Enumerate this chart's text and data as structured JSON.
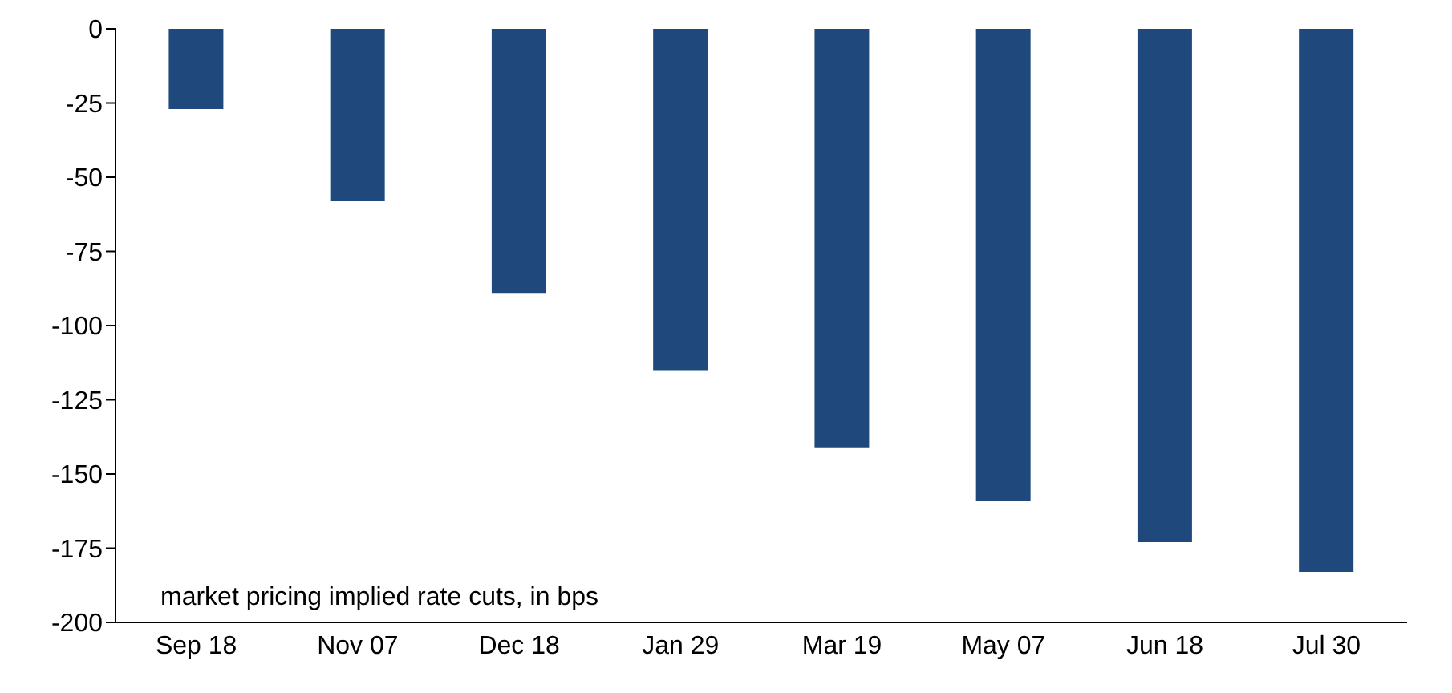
{
  "chart_data": {
    "type": "bar",
    "categories": [
      "Sep 18",
      "Nov 07",
      "Dec 18",
      "Jan 29",
      "Mar 19",
      "May 07",
      "Jun 18",
      "Jul 30"
    ],
    "values": [
      -27,
      -58,
      -89,
      -115,
      -141,
      -159,
      -173,
      -183
    ],
    "color": "#1f497d",
    "ylim": [
      -200,
      0
    ],
    "yticks": [
      -200,
      -175,
      -150,
      -125,
      -100,
      -75,
      -50,
      -25,
      0
    ],
    "grid": false,
    "annotations": [
      "market pricing implied rate cuts, in bps"
    ]
  }
}
